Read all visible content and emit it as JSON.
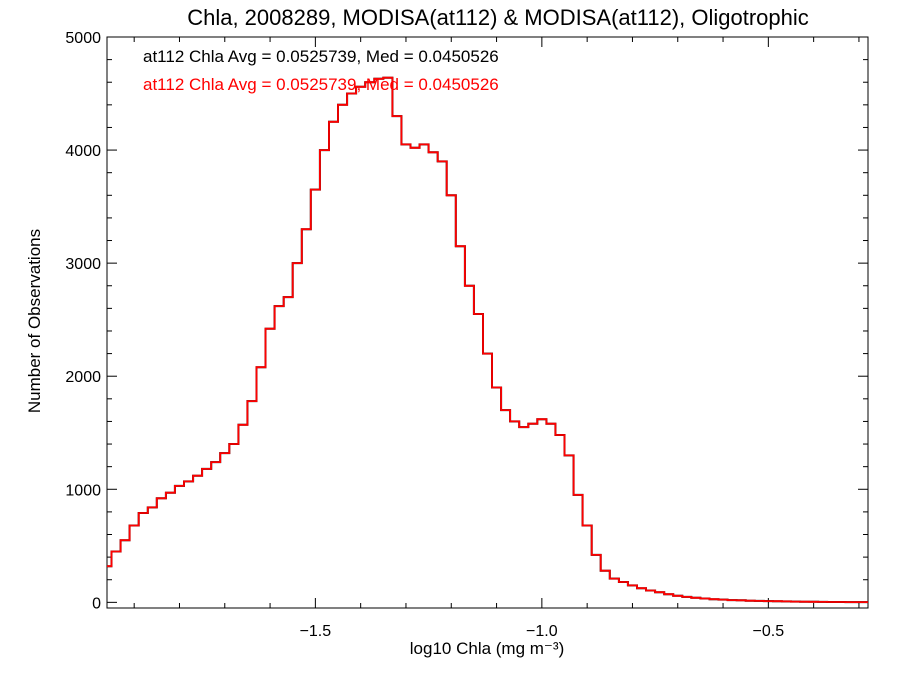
{
  "chart_data": {
    "type": "line",
    "title": "Chla, 2008289, MODISA(at112) & MODISA(at112), Oligotrophic",
    "xlabel": "log10 Chla (mg m⁻³)",
    "ylabel": "Number of Observations",
    "xlim": [
      -1.96,
      -0.28
    ],
    "ylim": [
      -50,
      5000
    ],
    "x_ticks": [
      -1.5,
      -1.0,
      -0.5
    ],
    "x_tick_labels": [
      "−1.5",
      "−1.0",
      "−0.5"
    ],
    "y_ticks": [
      0,
      1000,
      2000,
      3000,
      4000,
      5000
    ],
    "y_tick_labels": [
      "0",
      "1000",
      "2000",
      "3000",
      "4000",
      "5000"
    ],
    "grid": false,
    "annotations": [
      {
        "text": "at112 Chla Avg = 0.0525739, Med = 0.0450526",
        "color": "#000000"
      },
      {
        "text": "at112 Chla Avg = 0.0525739, Med = 0.0450526",
        "color": "#ff0000"
      }
    ],
    "series": [
      {
        "color": "#000000",
        "step": true,
        "points": [
          [
            -1.96,
            320
          ],
          [
            -1.94,
            450
          ],
          [
            -1.92,
            550
          ],
          [
            -1.9,
            680
          ],
          [
            -1.88,
            790
          ],
          [
            -1.86,
            840
          ],
          [
            -1.84,
            920
          ],
          [
            -1.82,
            970
          ],
          [
            -1.8,
            1030
          ],
          [
            -1.78,
            1070
          ],
          [
            -1.76,
            1120
          ],
          [
            -1.74,
            1180
          ],
          [
            -1.72,
            1240
          ],
          [
            -1.7,
            1320
          ],
          [
            -1.68,
            1400
          ],
          [
            -1.66,
            1570
          ],
          [
            -1.64,
            1780
          ],
          [
            -1.62,
            2080
          ],
          [
            -1.6,
            2420
          ],
          [
            -1.58,
            2620
          ],
          [
            -1.56,
            2700
          ],
          [
            -1.54,
            3000
          ],
          [
            -1.52,
            3300
          ],
          [
            -1.5,
            3650
          ],
          [
            -1.48,
            4000
          ],
          [
            -1.46,
            4250
          ],
          [
            -1.44,
            4400
          ],
          [
            -1.42,
            4500
          ],
          [
            -1.4,
            4560
          ],
          [
            -1.38,
            4600
          ],
          [
            -1.36,
            4630
          ],
          [
            -1.34,
            4640
          ],
          [
            -1.32,
            4300
          ],
          [
            -1.3,
            4050
          ],
          [
            -1.28,
            4020
          ],
          [
            -1.26,
            4050
          ],
          [
            -1.24,
            3980
          ],
          [
            -1.22,
            3900
          ],
          [
            -1.2,
            3600
          ],
          [
            -1.18,
            3150
          ],
          [
            -1.16,
            2800
          ],
          [
            -1.14,
            2550
          ],
          [
            -1.12,
            2200
          ],
          [
            -1.1,
            1900
          ],
          [
            -1.08,
            1700
          ],
          [
            -1.06,
            1600
          ],
          [
            -1.04,
            1550
          ],
          [
            -1.02,
            1580
          ],
          [
            -1.0,
            1620
          ],
          [
            -0.98,
            1580
          ],
          [
            -0.96,
            1480
          ],
          [
            -0.94,
            1300
          ],
          [
            -0.92,
            950
          ],
          [
            -0.9,
            680
          ],
          [
            -0.88,
            420
          ],
          [
            -0.86,
            280
          ],
          [
            -0.84,
            210
          ],
          [
            -0.82,
            180
          ],
          [
            -0.8,
            150
          ],
          [
            -0.78,
            125
          ],
          [
            -0.76,
            105
          ],
          [
            -0.74,
            90
          ],
          [
            -0.72,
            72
          ],
          [
            -0.7,
            58
          ],
          [
            -0.68,
            48
          ],
          [
            -0.66,
            40
          ],
          [
            -0.64,
            34
          ],
          [
            -0.62,
            28
          ],
          [
            -0.6,
            24
          ],
          [
            -0.58,
            20
          ],
          [
            -0.56,
            18
          ],
          [
            -0.54,
            15
          ],
          [
            -0.52,
            13
          ],
          [
            -0.5,
            11
          ],
          [
            -0.48,
            10
          ],
          [
            -0.46,
            8
          ],
          [
            -0.44,
            7
          ],
          [
            -0.42,
            6
          ],
          [
            -0.4,
            5
          ],
          [
            -0.38,
            4
          ],
          [
            -0.36,
            3
          ],
          [
            -0.34,
            3
          ],
          [
            -0.32,
            2
          ],
          [
            -0.3,
            2
          ],
          [
            -0.28,
            2
          ]
        ]
      },
      {
        "color": "#ff0000",
        "step": true,
        "points": [
          [
            -1.96,
            320
          ],
          [
            -1.94,
            450
          ],
          [
            -1.92,
            550
          ],
          [
            -1.9,
            680
          ],
          [
            -1.88,
            790
          ],
          [
            -1.86,
            840
          ],
          [
            -1.84,
            920
          ],
          [
            -1.82,
            970
          ],
          [
            -1.8,
            1030
          ],
          [
            -1.78,
            1070
          ],
          [
            -1.76,
            1120
          ],
          [
            -1.74,
            1180
          ],
          [
            -1.72,
            1240
          ],
          [
            -1.7,
            1320
          ],
          [
            -1.68,
            1400
          ],
          [
            -1.66,
            1570
          ],
          [
            -1.64,
            1780
          ],
          [
            -1.62,
            2080
          ],
          [
            -1.6,
            2420
          ],
          [
            -1.58,
            2620
          ],
          [
            -1.56,
            2700
          ],
          [
            -1.54,
            3000
          ],
          [
            -1.52,
            3300
          ],
          [
            -1.5,
            3650
          ],
          [
            -1.48,
            4000
          ],
          [
            -1.46,
            4250
          ],
          [
            -1.44,
            4400
          ],
          [
            -1.42,
            4500
          ],
          [
            -1.4,
            4560
          ],
          [
            -1.38,
            4600
          ],
          [
            -1.36,
            4630
          ],
          [
            -1.34,
            4640
          ],
          [
            -1.32,
            4300
          ],
          [
            -1.3,
            4050
          ],
          [
            -1.28,
            4020
          ],
          [
            -1.26,
            4050
          ],
          [
            -1.24,
            3980
          ],
          [
            -1.22,
            3900
          ],
          [
            -1.2,
            3600
          ],
          [
            -1.18,
            3150
          ],
          [
            -1.16,
            2800
          ],
          [
            -1.14,
            2550
          ],
          [
            -1.12,
            2200
          ],
          [
            -1.1,
            1900
          ],
          [
            -1.08,
            1700
          ],
          [
            -1.06,
            1600
          ],
          [
            -1.04,
            1550
          ],
          [
            -1.02,
            1580
          ],
          [
            -1.0,
            1620
          ],
          [
            -0.98,
            1580
          ],
          [
            -0.96,
            1480
          ],
          [
            -0.94,
            1300
          ],
          [
            -0.92,
            950
          ],
          [
            -0.9,
            680
          ],
          [
            -0.88,
            420
          ],
          [
            -0.86,
            280
          ],
          [
            -0.84,
            210
          ],
          [
            -0.82,
            180
          ],
          [
            -0.8,
            150
          ],
          [
            -0.78,
            125
          ],
          [
            -0.76,
            105
          ],
          [
            -0.74,
            90
          ],
          [
            -0.72,
            72
          ],
          [
            -0.7,
            58
          ],
          [
            -0.68,
            48
          ],
          [
            -0.66,
            40
          ],
          [
            -0.64,
            34
          ],
          [
            -0.62,
            28
          ],
          [
            -0.6,
            24
          ],
          [
            -0.58,
            20
          ],
          [
            -0.56,
            18
          ],
          [
            -0.54,
            15
          ],
          [
            -0.52,
            13
          ],
          [
            -0.5,
            11
          ],
          [
            -0.48,
            10
          ],
          [
            -0.46,
            8
          ],
          [
            -0.44,
            7
          ],
          [
            -0.42,
            6
          ],
          [
            -0.4,
            5
          ],
          [
            -0.38,
            4
          ],
          [
            -0.36,
            3
          ],
          [
            -0.34,
            3
          ],
          [
            -0.32,
            2
          ],
          [
            -0.3,
            2
          ],
          [
            -0.28,
            2
          ]
        ]
      }
    ]
  }
}
